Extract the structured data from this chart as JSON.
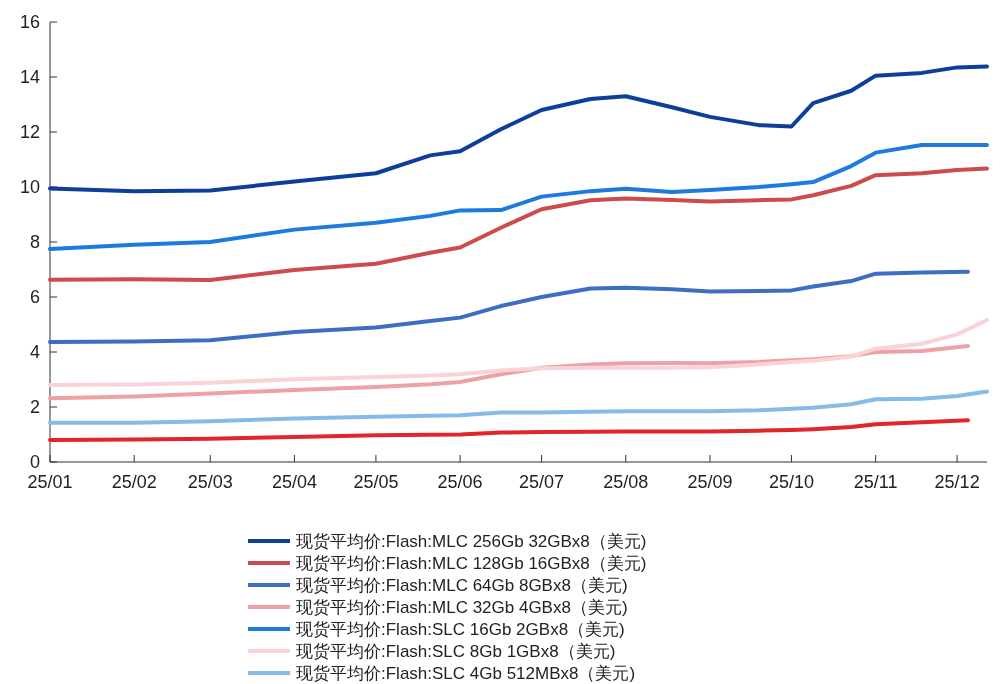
{
  "chart_data": {
    "type": "line",
    "xlim": [
      "--01-01",
      "--12-12"
    ],
    "xticks": [
      {
        "value": "--01-01",
        "label": "25/01"
      },
      {
        "value": "--02-01",
        "label": "25/02"
      },
      {
        "value": "--03-01",
        "label": "25/03"
      },
      {
        "value": "--04-01",
        "label": "25/04"
      },
      {
        "value": "--05-01",
        "label": "25/05"
      },
      {
        "value": "--06-01",
        "label": "25/06"
      },
      {
        "value": "--07-01",
        "label": "25/07"
      },
      {
        "value": "--08-01",
        "label": "25/08"
      },
      {
        "value": "--09-01",
        "label": "25/09"
      },
      {
        "value": "--10-01",
        "label": "25/10"
      },
      {
        "value": "--11-01",
        "label": "25/11"
      },
      {
        "value": "--12-01",
        "label": "25/12"
      }
    ],
    "ylim": [
      0,
      16
    ],
    "yticks": [
      0,
      2,
      4,
      6,
      8,
      10,
      12,
      14,
      16
    ],
    "legend": "bottom",
    "series": [
      {
        "name": "现货平均价:Flash:MLC 256Gb 32GBx8（美元)",
        "color": "#0d3f9a",
        "x": [
          "--01-01",
          "--02-01",
          "--03-01",
          "--04-01",
          "--05-01",
          "--05-21",
          "--06-01",
          "--06-16",
          "--07-01",
          "--07-19",
          "--08-01",
          "--08-18",
          "--09-01",
          "--09-19",
          "--10-01",
          "--10-09",
          "--10-23",
          "--11-01",
          "--11-18",
          "--12-01",
          "--12-12"
        ],
        "values": [
          9.95,
          9.85,
          9.87,
          10.2,
          10.5,
          11.15,
          11.3,
          12.1,
          12.8,
          13.2,
          13.3,
          12.9,
          12.55,
          12.25,
          12.2,
          13.05,
          13.5,
          14.05,
          14.15,
          14.35,
          14.38
        ]
      },
      {
        "name": "现货平均价:Flash:MLC 128Gb 16GBx8（美元)",
        "color": "#cc4b4b",
        "x": [
          "--01-01",
          "--02-01",
          "--03-01",
          "--04-01",
          "--05-01",
          "--05-21",
          "--06-01",
          "--06-16",
          "--07-01",
          "--07-19",
          "--08-01",
          "--08-18",
          "--09-01",
          "--09-19",
          "--10-01",
          "--10-09",
          "--10-23",
          "--11-01",
          "--11-18",
          "--12-01",
          "--12-12"
        ],
        "values": [
          6.63,
          6.65,
          6.62,
          6.98,
          7.21,
          7.61,
          7.8,
          8.52,
          9.19,
          9.52,
          9.58,
          9.53,
          9.47,
          9.52,
          9.55,
          9.7,
          10.04,
          10.43,
          10.5,
          10.62,
          10.67
        ]
      },
      {
        "name": "现货平均价:Flash:MLC 64Gb 8GBx8（美元)",
        "color": "#3d6ec4",
        "x": [
          "--01-01",
          "--02-01",
          "--03-01",
          "--04-01",
          "--05-01",
          "--05-21",
          "--06-01",
          "--06-16",
          "--07-01",
          "--07-19",
          "--08-01",
          "--08-18",
          "--09-01",
          "--09-19",
          "--10-01",
          "--10-09",
          "--10-23",
          "--11-01",
          "--11-18",
          "--12-05"
        ],
        "values": [
          4.36,
          4.38,
          4.43,
          4.73,
          4.89,
          5.13,
          5.25,
          5.67,
          6.0,
          6.31,
          6.34,
          6.28,
          6.2,
          6.22,
          6.24,
          6.38,
          6.58,
          6.85,
          6.89,
          6.92
        ]
      },
      {
        "name": "现货平均价:Flash:MLC 32Gb 4GBx8（美元)",
        "color": "#eea0a4",
        "x": [
          "--01-01",
          "--02-01",
          "--03-01",
          "--04-01",
          "--05-01",
          "--05-21",
          "--06-01",
          "--06-16",
          "--07-01",
          "--07-19",
          "--08-01",
          "--08-18",
          "--09-01",
          "--09-19",
          "--10-01",
          "--10-09",
          "--10-23",
          "--11-01",
          "--11-18",
          "--12-05"
        ],
        "values": [
          2.32,
          2.38,
          2.49,
          2.62,
          2.73,
          2.83,
          2.91,
          3.19,
          3.43,
          3.55,
          3.59,
          3.6,
          3.59,
          3.64,
          3.7,
          3.74,
          3.85,
          4.0,
          4.04,
          4.22
        ]
      },
      {
        "name": "现货平均价:Flash:SLC 16Gb 2GBx8（美元)",
        "color": "#1f7ae0",
        "x": [
          "--01-01",
          "--02-01",
          "--03-01",
          "--04-01",
          "--05-01",
          "--05-21",
          "--06-01",
          "--06-16",
          "--07-01",
          "--07-19",
          "--08-01",
          "--08-18",
          "--09-01",
          "--09-19",
          "--10-01",
          "--10-09",
          "--10-23",
          "--11-01",
          "--11-18",
          "--12-01",
          "--12-12"
        ],
        "values": [
          7.75,
          7.9,
          8.0,
          8.45,
          8.7,
          8.95,
          9.15,
          9.16,
          9.65,
          9.85,
          9.94,
          9.82,
          9.89,
          10.0,
          10.1,
          10.18,
          10.76,
          11.25,
          11.53,
          11.53,
          11.53
        ]
      },
      {
        "name": "现货平均价:Flash:SLC 8Gb 1GBx8（美元)",
        "color": "#f9d3d6",
        "x": [
          "--01-01",
          "--02-01",
          "--03-01",
          "--04-01",
          "--05-01",
          "--05-21",
          "--06-01",
          "--06-16",
          "--07-01",
          "--07-19",
          "--08-01",
          "--08-18",
          "--09-01",
          "--09-19",
          "--10-01",
          "--10-09",
          "--10-23",
          "--11-01",
          "--11-18",
          "--12-01",
          "--12-12"
        ],
        "values": [
          2.8,
          2.82,
          2.88,
          3.01,
          3.09,
          3.15,
          3.19,
          3.33,
          3.41,
          3.43,
          3.43,
          3.43,
          3.45,
          3.55,
          3.64,
          3.68,
          3.83,
          4.12,
          4.3,
          4.64,
          5.16
        ]
      },
      {
        "name": "现货平均价:Flash:SLC 4Gb 512MBx8（美元)",
        "color": "#85bbe6",
        "x": [
          "--01-01",
          "--02-01",
          "--03-01",
          "--04-01",
          "--05-01",
          "--05-21",
          "--06-01",
          "--06-16",
          "--07-01",
          "--07-19",
          "--08-01",
          "--08-18",
          "--09-01",
          "--09-19",
          "--10-01",
          "--10-09",
          "--10-23",
          "--11-01",
          "--11-18",
          "--12-01",
          "--12-12"
        ],
        "values": [
          1.43,
          1.43,
          1.48,
          1.58,
          1.65,
          1.68,
          1.7,
          1.8,
          1.8,
          1.83,
          1.85,
          1.85,
          1.85,
          1.88,
          1.94,
          1.97,
          2.1,
          2.28,
          2.3,
          2.4,
          2.56
        ]
      },
      {
        "color": "#e0262b",
        "x": [
          "--01-01",
          "--02-01",
          "--03-01",
          "--04-01",
          "--05-01",
          "--05-21",
          "--06-01",
          "--06-16",
          "--07-01",
          "--07-19",
          "--08-01",
          "--08-18",
          "--09-01",
          "--09-19",
          "--10-01",
          "--10-09",
          "--10-23",
          "--11-01",
          "--11-18",
          "--12-05"
        ],
        "values": [
          0.8,
          0.82,
          0.85,
          0.91,
          0.97,
          0.99,
          1.0,
          1.07,
          1.09,
          1.1,
          1.11,
          1.11,
          1.11,
          1.14,
          1.16,
          1.19,
          1.27,
          1.37,
          1.45,
          1.52
        ]
      }
    ]
  }
}
